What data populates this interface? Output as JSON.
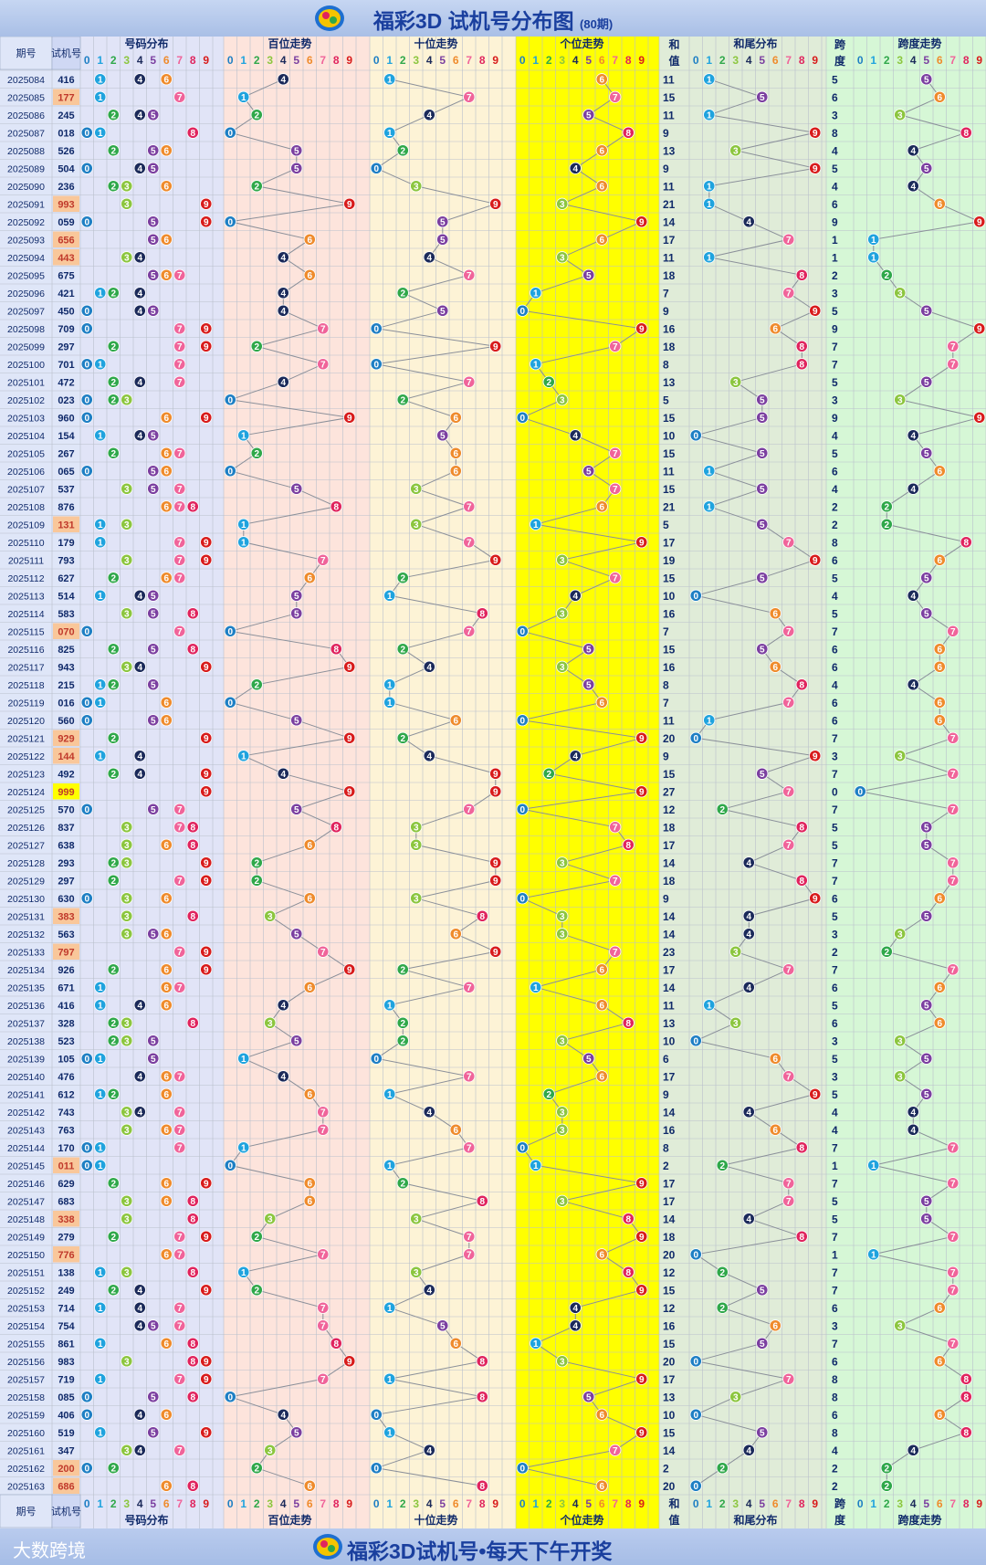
{
  "header": {
    "title": "福彩3D 试机号分布图",
    "period_note": "(80期)"
  },
  "footer": {
    "title": "福彩3D试机号•每天下午开奖",
    "watermark": "大数跨境"
  },
  "columns": {
    "period": "期号",
    "test_number": "试机号",
    "distribution": "号码分布",
    "hundreds": "百位走势",
    "tens": "十位走势",
    "units": "个位走势",
    "sum_top": "和",
    "sum_bottom": "值",
    "sum_tail": "和尾分布",
    "span_top": "跨",
    "span_bottom": "度",
    "span_trend": "跨度走势"
  },
  "digits": [
    "0",
    "1",
    "2",
    "3",
    "4",
    "5",
    "6",
    "7",
    "8",
    "9"
  ],
  "colors": {
    "digit_balls": [
      "#1e7fc4",
      "#1fa3de",
      "#2fa84a",
      "#8cc63f",
      "#1b2a5a",
      "#7b3fa0",
      "#ef8b2c",
      "#f0649a",
      "#e0245e",
      "#d81b1b"
    ],
    "header_digit": [
      "#1e7fc4",
      "#1fa3de",
      "#2fa84a",
      "#8cc63f",
      "#1b2a5a",
      "#7b3fa0",
      "#ef8b2c",
      "#f0649a",
      "#e0245e",
      "#d81b1b"
    ],
    "bg_distribution": "#e1e4f7",
    "bg_hundreds": "#fde4dc",
    "bg_tens": "#fdf3d6",
    "bg_units": "#ffff00",
    "bg_sum_tail": "#e0ecd8",
    "bg_span": "#d6f7d6",
    "hl_orange": "#f9c79a",
    "hl_yellow": "#ffff00"
  },
  "chart_data": {
    "type": "table",
    "title": "福彩3D 试机号分布图",
    "periods": [
      "2025084",
      "2025085",
      "2025086",
      "2025087",
      "2025088",
      "2025089",
      "2025090",
      "2025091",
      "2025092",
      "2025093",
      "2025094",
      "2025095",
      "2025096",
      "2025097",
      "2025098",
      "2025099",
      "2025100",
      "2025101",
      "2025102",
      "2025103",
      "2025104",
      "2025105",
      "2025106",
      "2025107",
      "2025108",
      "2025109",
      "2025110",
      "2025111",
      "2025112",
      "2025113",
      "2025114",
      "2025115",
      "2025116",
      "2025117",
      "2025118",
      "2025119",
      "2025120",
      "2025121",
      "2025122",
      "2025123",
      "2025124",
      "2025125",
      "2025126",
      "2025127",
      "2025128",
      "2025129",
      "2025130",
      "2025131",
      "2025132",
      "2025133",
      "2025134",
      "2025135",
      "2025136",
      "2025137",
      "2025138",
      "2025139",
      "2025140",
      "2025141",
      "2025142",
      "2025143",
      "2025144",
      "2025145",
      "2025146",
      "2025147",
      "2025148",
      "2025149",
      "2025150",
      "2025151",
      "2025152",
      "2025153",
      "2025154",
      "2025155",
      "2025156",
      "2025157",
      "2025158",
      "2025159",
      "2025160",
      "2025161",
      "2025162",
      "2025163"
    ],
    "numbers": [
      "416",
      "177",
      "245",
      "018",
      "526",
      "504",
      "236",
      "993",
      "059",
      "656",
      "443",
      "675",
      "421",
      "450",
      "709",
      "297",
      "701",
      "472",
      "023",
      "960",
      "154",
      "267",
      "065",
      "537",
      "876",
      "131",
      "179",
      "793",
      "627",
      "514",
      "583",
      "070",
      "825",
      "943",
      "215",
      "016",
      "560",
      "929",
      "144",
      "492",
      "999",
      "570",
      "837",
      "638",
      "293",
      "297",
      "630",
      "383",
      "563",
      "797",
      "926",
      "671",
      "416",
      "328",
      "523",
      "105",
      "476",
      "612",
      "743",
      "763",
      "170",
      "011",
      "629",
      "683",
      "338",
      "279",
      "776",
      "138",
      "249",
      "714",
      "754",
      "861",
      "983",
      "719",
      "085",
      "406",
      "519",
      "347",
      "200",
      "686"
    ],
    "sums": [
      11,
      15,
      11,
      9,
      13,
      9,
      11,
      21,
      14,
      17,
      11,
      18,
      7,
      9,
      16,
      18,
      8,
      13,
      5,
      15,
      10,
      15,
      11,
      15,
      21,
      5,
      17,
      19,
      15,
      10,
      16,
      7,
      15,
      16,
      8,
      7,
      11,
      20,
      9,
      15,
      27,
      12,
      18,
      17,
      14,
      18,
      9,
      14,
      14,
      23,
      17,
      14,
      11,
      13,
      10,
      6,
      17,
      9,
      14,
      16,
      8,
      2,
      17,
      17,
      14,
      18,
      20,
      12,
      15,
      12,
      16,
      15,
      20,
      17,
      13,
      10,
      15,
      14,
      2,
      20
    ],
    "spans": [
      5,
      6,
      3,
      8,
      4,
      5,
      4,
      6,
      9,
      1,
      1,
      2,
      3,
      5,
      9,
      7,
      7,
      5,
      3,
      9,
      4,
      5,
      6,
      4,
      2,
      2,
      8,
      6,
      5,
      4,
      5,
      7,
      6,
      6,
      4,
      6,
      6,
      7,
      3,
      7,
      0,
      7,
      5,
      5,
      7,
      7,
      6,
      5,
      3,
      2,
      7,
      6,
      5,
      6,
      3,
      5,
      3,
      5,
      4,
      4,
      7,
      1,
      7,
      5,
      5,
      7,
      1,
      7,
      7,
      6,
      3,
      7,
      6,
      8,
      8,
      6,
      8,
      4,
      2,
      2
    ]
  }
}
